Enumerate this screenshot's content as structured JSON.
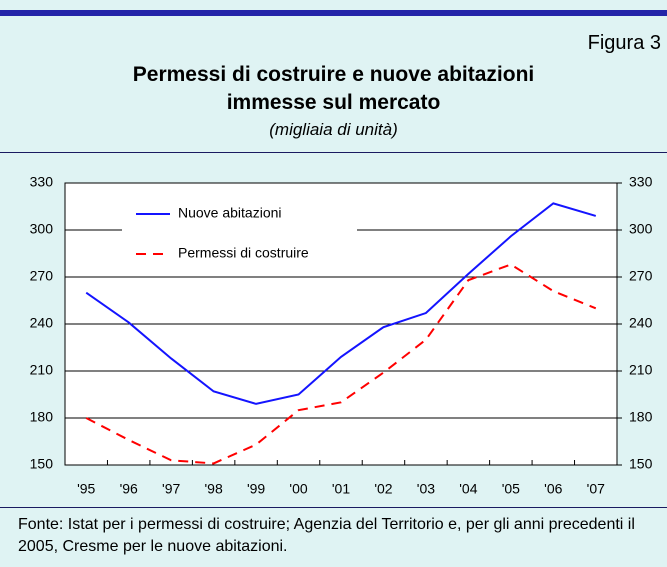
{
  "chart_data": {
    "type": "line",
    "figure_label": "Figura 3",
    "title": "Permessi di costruire e nuove abitazioni immesse sul mercato",
    "subtitle": "(migliaia di unità)",
    "categories": [
      "'95",
      "'96",
      "'97",
      "'98",
      "'99",
      "'00",
      "'01",
      "'02",
      "'03",
      "'04",
      "'05",
      "'06",
      "'07"
    ],
    "series": [
      {
        "name": "Nuove abitazioni",
        "color": "#1414ff",
        "dash": false,
        "values": [
          260,
          241,
          218,
          197,
          189,
          195,
          219,
          238,
          247,
          272,
          296,
          317,
          309
        ]
      },
      {
        "name": "Permessi di costruire",
        "color": "#ff0000",
        "dash": true,
        "values": [
          180,
          166,
          153,
          151,
          163,
          185,
          190,
          209,
          230,
          268,
          278,
          261,
          250
        ]
      }
    ],
    "ylim": [
      150,
      330
    ],
    "yticks": [
      150,
      180,
      210,
      240,
      270,
      300,
      330
    ],
    "y2lim": [
      150,
      330
    ],
    "y2ticks": [
      150,
      180,
      210,
      240,
      270,
      300,
      330
    ],
    "grid": true,
    "legend": "top-left",
    "source": "Fonte: Istat per i permessi di costruire; Agenzia del Territorio e, per gli anni precedenti il 2005, Cresme per le nuove abitazioni."
  }
}
